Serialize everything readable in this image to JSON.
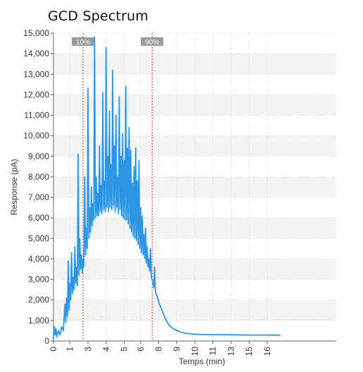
{
  "chart_data": {
    "type": "line",
    "title": "GCD Spectrum",
    "xlabel": "Temps (min)",
    "ylabel": "Response (pA)",
    "xlim": [
      0,
      17.2
    ],
    "ylim": [
      0,
      15000
    ],
    "x_ticks": [
      "0",
      "1",
      "3",
      "4",
      "5",
      "6",
      "8",
      "9",
      "10",
      "11",
      "13",
      "15",
      "16"
    ],
    "x_tick_values": [
      0,
      1,
      2.1,
      3.2,
      4.3,
      5.3,
      6.4,
      7.5,
      8.6,
      9.7,
      10.8,
      11.9,
      13
    ],
    "y_ticks": [
      0,
      1000,
      2000,
      3000,
      4000,
      5000,
      6000,
      7000,
      8000,
      9000,
      10000,
      11000,
      12000,
      13000,
      14000,
      15000
    ],
    "y_tick_labels": [
      "0",
      "1,000",
      "2,000",
      "3,000",
      "4,000",
      "5,000",
      "6,000",
      "7,000",
      "8,000",
      "9,000",
      "10,000",
      "11,000",
      "12,000",
      "13,000",
      "14,000",
      "15,000"
    ],
    "grid": true,
    "markers": [
      {
        "label": "10%",
        "x": 1.8
      },
      {
        "label": "90%",
        "x": 6.0
      }
    ],
    "series": [
      {
        "color": "#2b96e6",
        "points": [
          [
            0.0,
            100
          ],
          [
            0.05,
            700
          ],
          [
            0.1,
            300
          ],
          [
            0.15,
            600
          ],
          [
            0.2,
            200
          ],
          [
            0.3,
            500
          ],
          [
            0.4,
            300
          ],
          [
            0.5,
            700
          ],
          [
            0.6,
            500
          ],
          [
            0.7,
            1800
          ],
          [
            0.75,
            900
          ],
          [
            0.8,
            2100
          ],
          [
            0.85,
            1200
          ],
          [
            0.9,
            3900
          ],
          [
            0.95,
            1500
          ],
          [
            1.0,
            2800
          ],
          [
            1.05,
            2000
          ],
          [
            1.1,
            4300
          ],
          [
            1.15,
            2300
          ],
          [
            1.2,
            3100
          ],
          [
            1.25,
            2500
          ],
          [
            1.3,
            4600
          ],
          [
            1.35,
            2800
          ],
          [
            1.4,
            3600
          ],
          [
            1.45,
            2700
          ],
          [
            1.5,
            9100
          ],
          [
            1.55,
            3200
          ],
          [
            1.6,
            5000
          ],
          [
            1.65,
            3500
          ],
          [
            1.7,
            4200
          ],
          [
            1.75,
            3300
          ],
          [
            1.8,
            4000
          ],
          [
            1.85,
            3600
          ],
          [
            1.9,
            8000
          ],
          [
            1.95,
            4200
          ],
          [
            2.0,
            5500
          ],
          [
            2.05,
            4500
          ],
          [
            2.1,
            12300
          ],
          [
            2.15,
            5000
          ],
          [
            2.2,
            6500
          ],
          [
            2.25,
            5300
          ],
          [
            2.3,
            7500
          ],
          [
            2.35,
            5600
          ],
          [
            2.4,
            6700
          ],
          [
            2.45,
            5900
          ],
          [
            2.5,
            14800
          ],
          [
            2.55,
            6000
          ],
          [
            2.6,
            8000
          ],
          [
            2.65,
            6100
          ],
          [
            2.7,
            7200
          ],
          [
            2.75,
            6100
          ],
          [
            2.8,
            9500
          ],
          [
            2.85,
            6300
          ],
          [
            2.9,
            7600
          ],
          [
            2.95,
            6200
          ],
          [
            3.0,
            12100
          ],
          [
            3.05,
            6400
          ],
          [
            3.1,
            7800
          ],
          [
            3.15,
            6300
          ],
          [
            3.2,
            14300
          ],
          [
            3.25,
            6500
          ],
          [
            3.3,
            9000
          ],
          [
            3.35,
            6300
          ],
          [
            3.4,
            11200
          ],
          [
            3.45,
            6500
          ],
          [
            3.5,
            8600
          ],
          [
            3.55,
            6400
          ],
          [
            3.6,
            13200
          ],
          [
            3.65,
            6600
          ],
          [
            3.7,
            9500
          ],
          [
            3.75,
            6300
          ],
          [
            3.8,
            11000
          ],
          [
            3.85,
            6500
          ],
          [
            3.9,
            8000
          ],
          [
            3.95,
            6200
          ],
          [
            4.0,
            11900
          ],
          [
            4.05,
            6400
          ],
          [
            4.1,
            9000
          ],
          [
            4.15,
            6100
          ],
          [
            4.2,
            10100
          ],
          [
            4.25,
            6000
          ],
          [
            4.3,
            8800
          ],
          [
            4.35,
            5900
          ],
          [
            4.4,
            12400
          ],
          [
            4.45,
            5900
          ],
          [
            4.5,
            9400
          ],
          [
            4.55,
            5700
          ],
          [
            4.6,
            10400
          ],
          [
            4.65,
            5500
          ],
          [
            4.7,
            9300
          ],
          [
            4.75,
            5300
          ],
          [
            4.8,
            7700
          ],
          [
            4.85,
            5100
          ],
          [
            4.9,
            8500
          ],
          [
            4.95,
            5000
          ],
          [
            5.0,
            9400
          ],
          [
            5.05,
            4900
          ],
          [
            5.1,
            7800
          ],
          [
            5.15,
            4700
          ],
          [
            5.2,
            8800
          ],
          [
            5.25,
            4500
          ],
          [
            5.3,
            6500
          ],
          [
            5.35,
            4300
          ],
          [
            5.4,
            6100
          ],
          [
            5.45,
            4200
          ],
          [
            5.5,
            5200
          ],
          [
            5.55,
            4000
          ],
          [
            5.6,
            5500
          ],
          [
            5.65,
            3800
          ],
          [
            5.7,
            4600
          ],
          [
            5.75,
            3600
          ],
          [
            5.8,
            4000
          ],
          [
            5.85,
            3400
          ],
          [
            5.9,
            4500
          ],
          [
            5.95,
            3100
          ],
          [
            6.0,
            3000
          ],
          [
            6.1,
            2600
          ],
          [
            6.15,
            3600
          ],
          [
            6.2,
            2400
          ],
          [
            6.3,
            2200
          ],
          [
            6.4,
            1900
          ],
          [
            6.5,
            1700
          ],
          [
            6.6,
            1500
          ],
          [
            6.7,
            1300
          ],
          [
            6.8,
            1100
          ],
          [
            6.9,
            950
          ],
          [
            7.0,
            800
          ],
          [
            7.2,
            650
          ],
          [
            7.4,
            550
          ],
          [
            7.6,
            480
          ],
          [
            7.8,
            420
          ],
          [
            8.0,
            380
          ],
          [
            8.5,
            340
          ],
          [
            9.0,
            320
          ],
          [
            10.0,
            310
          ],
          [
            11.0,
            300
          ],
          [
            12.0,
            290
          ],
          [
            13.0,
            290
          ],
          [
            13.5,
            285
          ],
          [
            13.8,
            285
          ]
        ]
      }
    ]
  }
}
